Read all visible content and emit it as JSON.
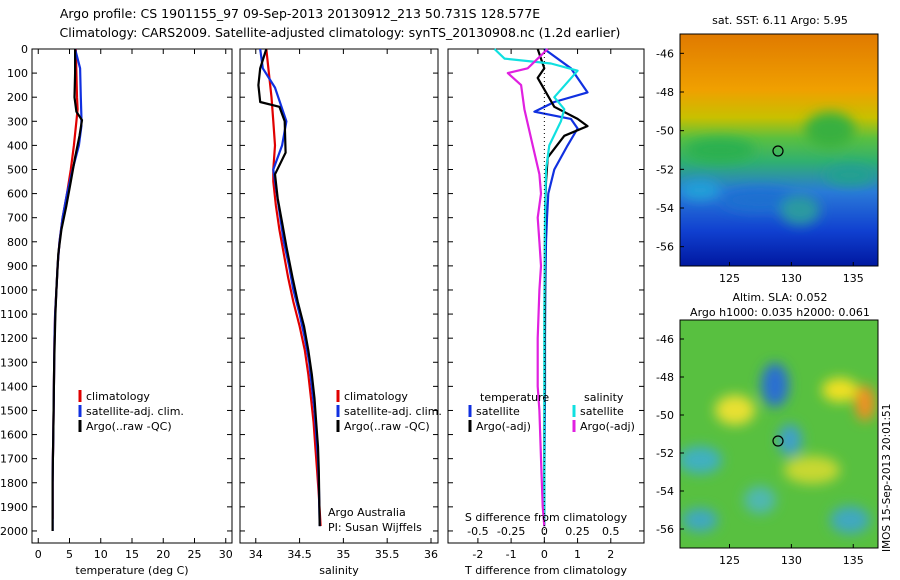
{
  "title": {
    "line1": "Argo profile: CS 1901155_97 09-Sep-2013 20130912_213 50.731S 128.577E",
    "line2": "Climatology: CARS2009. Satellite-adjusted climatology: synTS_20130908.nc (1.2d earlier)"
  },
  "colors": {
    "climatology": "#e00000",
    "satellite": "#1030e0",
    "argo": "#000000",
    "satellite_s": "#10e0e0",
    "argo_s": "#e020e0"
  },
  "chart_data": [
    {
      "type": "line",
      "panel": "temperature",
      "xlabel": "temperature (deg C)",
      "ylim": [
        2050,
        0
      ],
      "xlim": [
        -1,
        31
      ],
      "xticks": [
        "0",
        "5",
        "10",
        "15",
        "20",
        "25",
        "30"
      ],
      "yticks": [
        "0",
        "100",
        "200",
        "300",
        "400",
        "500",
        "600",
        "700",
        "800",
        "900",
        "1000",
        "1100",
        "1200",
        "1300",
        "1400",
        "1500",
        "1600",
        "1700",
        "1800",
        "1900",
        "2000"
      ],
      "legend": [
        "climatology",
        "satellite-adj. clim.",
        "Argo(..raw -QC)"
      ],
      "series": [
        {
          "name": "climatology",
          "color_key": "climatology",
          "x": [
            6.0,
            6.1,
            6.2,
            6.3,
            6.1,
            5.7,
            5.2,
            4.6,
            3.9,
            3.4,
            3.1,
            2.9,
            2.7,
            2.6,
            2.55,
            2.5,
            2.45,
            2.4,
            2.35,
            2.3,
            2.3
          ],
          "y": [
            0,
            100,
            200,
            250,
            300,
            400,
            500,
            600,
            700,
            800,
            900,
            1000,
            1100,
            1200,
            1300,
            1400,
            1500,
            1600,
            1700,
            1800,
            1950
          ]
        },
        {
          "name": "satellite-adj. clim.",
          "color_key": "satellite",
          "x": [
            5.9,
            6.7,
            6.8,
            6.9,
            6.9,
            6.5,
            5.5,
            4.6,
            3.9,
            3.4,
            3.1,
            2.9,
            2.7,
            2.6,
            2.55,
            2.5,
            2.45,
            2.4,
            2.35,
            2.3,
            2.3
          ],
          "y": [
            0,
            80,
            200,
            280,
            320,
            400,
            500,
            600,
            700,
            800,
            900,
            1000,
            1100,
            1200,
            1300,
            1400,
            1500,
            1600,
            1700,
            1800,
            2000
          ]
        },
        {
          "name": "Argo(..raw -QC)",
          "color_key": "argo",
          "x": [
            5.9,
            5.9,
            5.8,
            6.1,
            7.0,
            6.6,
            5.9,
            5.2,
            4.5,
            3.7,
            3.2,
            2.9,
            2.75,
            2.65,
            2.55,
            2.5,
            2.45,
            2.4,
            2.35,
            2.3,
            2.3
          ],
          "y": [
            0,
            100,
            200,
            260,
            295,
            360,
            450,
            550,
            650,
            750,
            850,
            1000,
            1100,
            1200,
            1300,
            1400,
            1500,
            1600,
            1700,
            1800,
            2000
          ]
        }
      ]
    },
    {
      "type": "line",
      "panel": "salinity",
      "xlabel": "salinity",
      "ylim": [
        2050,
        0
      ],
      "xlim": [
        33.82,
        36.08
      ],
      "xticks": [
        "34",
        "34.5",
        "35",
        "35.5",
        "36"
      ],
      "legend": [
        "climatology",
        "satellite-adj. clim.",
        "Argo(..raw -QC)"
      ],
      "annotation": [
        "Argo Australia",
        "PI: Susan Wijffels"
      ],
      "series": [
        {
          "name": "climatology",
          "color_key": "climatology",
          "x": [
            34.12,
            34.15,
            34.18,
            34.2,
            34.22,
            34.2,
            34.2,
            34.23,
            34.27,
            34.32,
            34.37,
            34.43,
            34.5,
            34.56,
            34.6,
            34.63,
            34.66,
            34.68,
            34.7,
            34.72,
            34.74
          ],
          "y": [
            0,
            100,
            200,
            300,
            400,
            500,
            550,
            650,
            750,
            850,
            950,
            1050,
            1150,
            1250,
            1350,
            1450,
            1550,
            1650,
            1750,
            1850,
            1980
          ]
        },
        {
          "name": "satellite-adj. clim.",
          "color_key": "satellite",
          "x": [
            34.05,
            34.08,
            34.22,
            34.35,
            34.3,
            34.2,
            34.24,
            34.28,
            34.32,
            34.38,
            34.43,
            34.5,
            34.56,
            34.61,
            34.64,
            34.67,
            34.69,
            34.71,
            34.72,
            34.73
          ],
          "y": [
            0,
            80,
            160,
            300,
            400,
            500,
            600,
            700,
            800,
            900,
            1000,
            1100,
            1200,
            1300,
            1400,
            1500,
            1600,
            1700,
            1800,
            1980
          ]
        },
        {
          "name": "Argo(..raw -QC)",
          "color_key": "argo",
          "x": [
            34.12,
            34.05,
            34.03,
            34.05,
            34.27,
            34.33,
            34.34,
            34.22,
            34.25,
            34.3,
            34.35,
            34.42,
            34.48,
            34.55,
            34.6,
            34.64,
            34.67,
            34.69,
            34.71,
            34.72,
            34.73
          ],
          "y": [
            0,
            80,
            150,
            220,
            240,
            300,
            430,
            520,
            620,
            720,
            820,
            950,
            1050,
            1150,
            1250,
            1350,
            1450,
            1550,
            1650,
            1750,
            1980
          ]
        }
      ]
    },
    {
      "type": "line",
      "panel": "difference",
      "xlabel": "T difference from climatology",
      "xlabel_top": "S difference from climatology",
      "ylim": [
        2050,
        0
      ],
      "xlim": [
        -2.9,
        3.0
      ],
      "xticks_bottom": [
        "-2",
        "-1",
        "0",
        "1",
        "2"
      ],
      "xticks_top": [
        "-0.5",
        "-0.25",
        "0",
        "0.25",
        "0.5"
      ],
      "legend_titles": [
        "temperature",
        "salinity"
      ],
      "legend": [
        "satellite",
        "Argo(-adj)",
        "satellite",
        "Argo(-adj)"
      ],
      "series": [
        {
          "name": "satellite",
          "color_key": "satellite",
          "x": [
            0,
            0.8,
            1.3,
            0.3,
            -0.3,
            0.8,
            1.0,
            0.7,
            0.3,
            0.12,
            0.08,
            0.05,
            0.03,
            0.02,
            0.02,
            0.01,
            0.0,
            0.0,
            0.0,
            0.0
          ],
          "y": [
            0,
            80,
            180,
            220,
            260,
            290,
            330,
            400,
            500,
            600,
            700,
            800,
            1000,
            1200,
            1400,
            1600,
            1800,
            1900,
            1950,
            1980
          ]
        },
        {
          "name": "Argo(-adj)",
          "color_key": "argo",
          "x": [
            -0.2,
            0.0,
            -0.2,
            0.3,
            1.0,
            1.3,
            0.6,
            0.1,
            0.05,
            0.03,
            0.02,
            0.02,
            0.01,
            0.01,
            0.0,
            0.0,
            0.0,
            0.0
          ],
          "y": [
            0,
            80,
            120,
            240,
            290,
            320,
            360,
            450,
            550,
            650,
            800,
            1000,
            1200,
            1400,
            1600,
            1800,
            1900,
            1980
          ]
        },
        {
          "name": "satellite",
          "color_key": "satellite_s",
          "x": [
            -1.5,
            -1.2,
            0.2,
            1.0,
            0.3,
            0.6,
            0.5,
            0.15,
            0.05,
            0.02,
            0.01,
            0.0,
            0.0,
            0.0,
            0.0,
            0.0
          ],
          "y": [
            0,
            40,
            60,
            90,
            200,
            250,
            300,
            400,
            500,
            700,
            900,
            1100,
            1300,
            1500,
            1800,
            1980
          ]
        },
        {
          "name": "Argo(-adj)",
          "color_key": "argo_s",
          "x": [
            0.1,
            -0.5,
            -1.1,
            -0.7,
            -0.6,
            -0.35,
            -0.15,
            -0.1,
            -0.2,
            -0.15,
            -0.1,
            -0.15,
            -0.2,
            -0.2,
            -0.15,
            -0.1,
            -0.05,
            0.0
          ],
          "y": [
            0,
            80,
            100,
            150,
            250,
            400,
            520,
            600,
            700,
            800,
            900,
            1000,
            1200,
            1400,
            1500,
            1700,
            1900,
            1980
          ]
        }
      ]
    },
    {
      "type": "heatmap",
      "panel": "map-sst",
      "title": "sat. SST: 6.11  Argo: 5.95",
      "xlim": [
        121,
        137
      ],
      "ylim": [
        -57,
        -45
      ],
      "xticks": [
        "125",
        "130",
        "135"
      ],
      "yticks": [
        "-46",
        "-48",
        "-50",
        "-52",
        "-54",
        "-56"
      ],
      "marker": {
        "lon": 128.577,
        "lat": -50.731
      }
    },
    {
      "type": "heatmap",
      "panel": "map-sla",
      "title": "Altim. SLA: 0.052",
      "subtitle": "Argo h1000: 0.035 h2000: 0.061",
      "xlim": [
        121,
        137
      ],
      "ylim": [
        -57,
        -45
      ],
      "xticks": [
        "125",
        "130",
        "135"
      ],
      "yticks": [
        "-46",
        "-48",
        "-50",
        "-52",
        "-54",
        "-56"
      ],
      "marker": {
        "lon": 128.577,
        "lat": -50.731
      }
    }
  ],
  "stamp": "IMOS 15-Sep-2013 20:01:51"
}
